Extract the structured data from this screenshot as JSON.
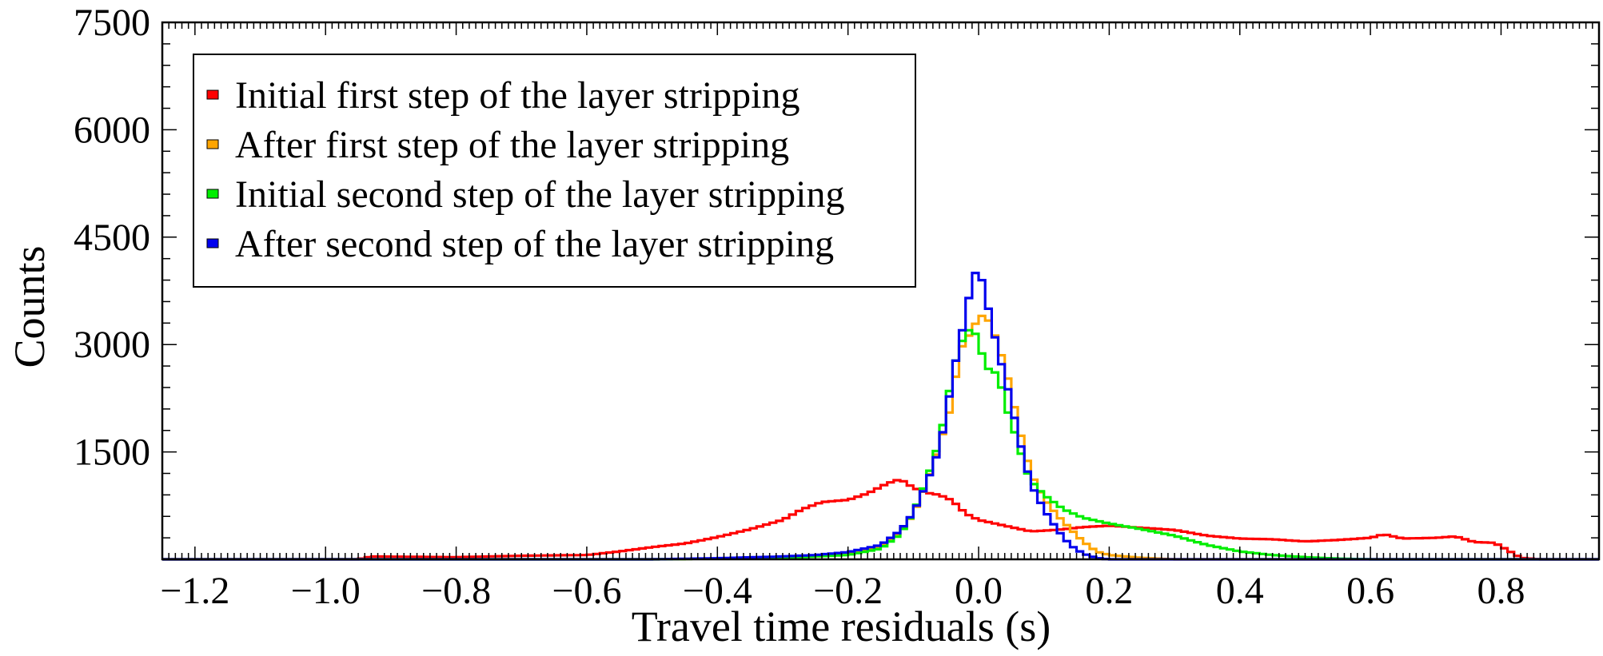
{
  "chart_data": {
    "type": "line",
    "title": "",
    "xlabel": "Travel time residuals (s)",
    "ylabel": "Counts",
    "xlim": [
      -1.25,
      0.95
    ],
    "ylim": [
      0,
      7500
    ],
    "x_ticks": [
      -1.2,
      -1.0,
      -0.8,
      -0.6,
      -0.4,
      -0.2,
      0.0,
      0.2,
      0.4,
      0.6,
      0.8
    ],
    "x_tick_labels": [
      "−1.2",
      "−1.0",
      "−0.8",
      "−0.6",
      "−0.4",
      "−0.2",
      "0.0",
      "0.2",
      "0.4",
      "0.6",
      "0.8"
    ],
    "y_ticks": [
      1500,
      3000,
      4500,
      6000,
      7500
    ],
    "y_tick_labels": [
      "1500",
      "3000",
      "4500",
      "6000",
      "7500"
    ],
    "grid": false,
    "legend_position": "top-left",
    "series": [
      {
        "name": "Initial first step of the layer stripping",
        "color": "#ff0000",
        "points": [
          [
            -1.25,
            0
          ],
          [
            -0.95,
            0
          ],
          [
            -0.93,
            40
          ],
          [
            -0.8,
            30
          ],
          [
            -0.7,
            50
          ],
          [
            -0.6,
            60
          ],
          [
            -0.55,
            110
          ],
          [
            -0.5,
            170
          ],
          [
            -0.45,
            220
          ],
          [
            -0.4,
            310
          ],
          [
            -0.35,
            420
          ],
          [
            -0.3,
            550
          ],
          [
            -0.27,
            700
          ],
          [
            -0.24,
            800
          ],
          [
            -0.2,
            830
          ],
          [
            -0.17,
            920
          ],
          [
            -0.14,
            1060
          ],
          [
            -0.12,
            1120
          ],
          [
            -0.1,
            1000
          ],
          [
            -0.08,
            930
          ],
          [
            -0.06,
            900
          ],
          [
            -0.04,
            820
          ],
          [
            -0.02,
            640
          ],
          [
            0.0,
            550
          ],
          [
            0.03,
            490
          ],
          [
            0.06,
            430
          ],
          [
            0.08,
            390
          ],
          [
            0.1,
            400
          ],
          [
            0.13,
            420
          ],
          [
            0.16,
            450
          ],
          [
            0.2,
            470
          ],
          [
            0.25,
            440
          ],
          [
            0.3,
            410
          ],
          [
            0.35,
            330
          ],
          [
            0.4,
            290
          ],
          [
            0.45,
            280
          ],
          [
            0.5,
            250
          ],
          [
            0.55,
            270
          ],
          [
            0.6,
            300
          ],
          [
            0.62,
            350
          ],
          [
            0.65,
            290
          ],
          [
            0.7,
            300
          ],
          [
            0.73,
            320
          ],
          [
            0.76,
            240
          ],
          [
            0.79,
            230
          ],
          [
            0.81,
            130
          ],
          [
            0.83,
            20
          ],
          [
            0.86,
            0
          ],
          [
            0.95,
            0
          ]
        ]
      },
      {
        "name": "After first step of the layer stripping",
        "color": "#ffa500",
        "points": [
          [
            -1.25,
            0
          ],
          [
            -0.5,
            0
          ],
          [
            -0.4,
            10
          ],
          [
            -0.3,
            30
          ],
          [
            -0.25,
            40
          ],
          [
            -0.2,
            70
          ],
          [
            -0.15,
            180
          ],
          [
            -0.12,
            370
          ],
          [
            -0.1,
            630
          ],
          [
            -0.08,
            1050
          ],
          [
            -0.06,
            1600
          ],
          [
            -0.04,
            2200
          ],
          [
            -0.03,
            2900
          ],
          [
            -0.02,
            3050
          ],
          [
            -0.01,
            3200
          ],
          [
            0.0,
            3380
          ],
          [
            0.01,
            3420
          ],
          [
            0.02,
            3250
          ],
          [
            0.03,
            3000
          ],
          [
            0.04,
            2700
          ],
          [
            0.05,
            2350
          ],
          [
            0.06,
            1900
          ],
          [
            0.07,
            1550
          ],
          [
            0.08,
            1200
          ],
          [
            0.1,
            850
          ],
          [
            0.12,
            620
          ],
          [
            0.14,
            430
          ],
          [
            0.16,
            250
          ],
          [
            0.18,
            110
          ],
          [
            0.2,
            60
          ],
          [
            0.25,
            20
          ],
          [
            0.3,
            0
          ],
          [
            0.95,
            0
          ]
        ]
      },
      {
        "name": "Initial second step of the layer stripping",
        "color": "#00ee00",
        "points": [
          [
            -1.25,
            0
          ],
          [
            -0.5,
            0
          ],
          [
            -0.4,
            10
          ],
          [
            -0.3,
            20
          ],
          [
            -0.25,
            40
          ],
          [
            -0.2,
            60
          ],
          [
            -0.15,
            150
          ],
          [
            -0.12,
            350
          ],
          [
            -0.1,
            650
          ],
          [
            -0.08,
            1100
          ],
          [
            -0.06,
            1650
          ],
          [
            -0.05,
            2100
          ],
          [
            -0.04,
            2600
          ],
          [
            -0.03,
            2950
          ],
          [
            -0.02,
            3150
          ],
          [
            -0.01,
            3250
          ],
          [
            0.0,
            3050
          ],
          [
            0.01,
            2700
          ],
          [
            0.02,
            2620
          ],
          [
            0.03,
            2600
          ],
          [
            0.04,
            2200
          ],
          [
            0.05,
            1900
          ],
          [
            0.06,
            1650
          ],
          [
            0.07,
            1300
          ],
          [
            0.08,
            1100
          ],
          [
            0.1,
            900
          ],
          [
            0.13,
            700
          ],
          [
            0.16,
            580
          ],
          [
            0.2,
            500
          ],
          [
            0.25,
            420
          ],
          [
            0.3,
            330
          ],
          [
            0.35,
            200
          ],
          [
            0.4,
            110
          ],
          [
            0.45,
            60
          ],
          [
            0.5,
            30
          ],
          [
            0.55,
            10
          ],
          [
            0.6,
            0
          ],
          [
            0.95,
            0
          ]
        ]
      },
      {
        "name": "After second step of the layer stripping",
        "color": "#0000ee",
        "points": [
          [
            -1.25,
            0
          ],
          [
            -0.5,
            0
          ],
          [
            -0.4,
            15
          ],
          [
            -0.3,
            40
          ],
          [
            -0.25,
            60
          ],
          [
            -0.2,
            100
          ],
          [
            -0.15,
            200
          ],
          [
            -0.12,
            400
          ],
          [
            -0.1,
            650
          ],
          [
            -0.08,
            1050
          ],
          [
            -0.06,
            1550
          ],
          [
            -0.05,
            2000
          ],
          [
            -0.04,
            2550
          ],
          [
            -0.03,
            3000
          ],
          [
            -0.02,
            3400
          ],
          [
            -0.01,
            3900
          ],
          [
            0.0,
            4100
          ],
          [
            0.01,
            3700
          ],
          [
            0.02,
            3300
          ],
          [
            0.03,
            2900
          ],
          [
            0.04,
            2550
          ],
          [
            0.05,
            2200
          ],
          [
            0.06,
            1750
          ],
          [
            0.07,
            1400
          ],
          [
            0.08,
            1050
          ],
          [
            0.1,
            700
          ],
          [
            0.12,
            420
          ],
          [
            0.14,
            200
          ],
          [
            0.16,
            80
          ],
          [
            0.18,
            20
          ],
          [
            0.2,
            0
          ],
          [
            0.95,
            0
          ]
        ]
      }
    ]
  }
}
